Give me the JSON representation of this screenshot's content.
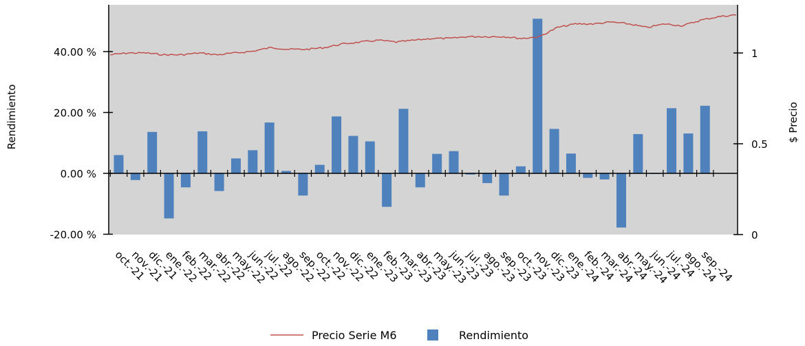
{
  "chart_data": {
    "type": "bar",
    "categories": [
      "oct.-21",
      "nov.-21",
      "dic.-21",
      "ene.-22",
      "feb.-22",
      "mar.-22",
      "abr.-22",
      "may.-22",
      "jun.-22",
      "jul.-22",
      "ago.-22",
      "sep.-22",
      "oct.-22",
      "nov.-22",
      "dic.-22",
      "ene.-23",
      "feb.-23",
      "mar.-23",
      "abr.-23",
      "may.-23",
      "jun.-23",
      "jul.-23",
      "ago.-23",
      "sep.-23",
      "oct.-23",
      "nov.-23",
      "dic.-23",
      "ene.-24",
      "feb.-24",
      "mar.-24",
      "abr.-24",
      "may.-24",
      "jun.-24",
      "jul.-24",
      "ago.-24",
      "sep.-24"
    ],
    "series": [
      {
        "name": "Rendimiento",
        "axis": "left",
        "kind": "bar",
        "values": [
          6.0,
          -2.2,
          13.6,
          -14.8,
          -4.6,
          13.8,
          -5.8,
          4.9,
          7.6,
          16.7,
          0.8,
          -7.3,
          2.8,
          18.7,
          12.3,
          10.5,
          -11.0,
          21.2,
          -4.6,
          6.4,
          7.3,
          -0.4,
          -3.2,
          -7.3,
          2.3,
          50.8,
          14.6,
          6.5,
          -1.5,
          -2.0,
          -17.8,
          12.9,
          0.0,
          21.4,
          13.1,
          22.2
        ]
      },
      {
        "name": "Precio Serie M6",
        "axis": "right",
        "kind": "line",
        "values": [
          0.99,
          1.0,
          1.0,
          0.99,
          0.99,
          1.0,
          0.99,
          1.0,
          1.01,
          1.03,
          1.02,
          1.02,
          1.03,
          1.05,
          1.06,
          1.07,
          1.06,
          1.07,
          1.08,
          1.08,
          1.09,
          1.09,
          1.09,
          1.08,
          1.09,
          1.14,
          1.16,
          1.16,
          1.17,
          1.16,
          1.14,
          1.16,
          1.15,
          1.18,
          1.2,
          1.21
        ]
      }
    ],
    "ylabel": "Rendimiento",
    "y2label": "$ Precio",
    "ylim": [
      -25,
      55
    ],
    "y2lim": [
      0,
      1.35
    ],
    "y_ticks": [
      "40.00 %",
      "20.00 %",
      "0.00 %",
      "-20.00 %"
    ],
    "y_tick_values": [
      40,
      20,
      0,
      -20
    ],
    "y2_ticks": [
      "1",
      "0.5",
      "0"
    ],
    "y2_tick_values": [
      1,
      0.5,
      0
    ],
    "legend_position": "bottom",
    "colors": {
      "bar": "#4f81bd",
      "line": "#c0504d",
      "plot_bg": "#d4d4d4"
    }
  }
}
